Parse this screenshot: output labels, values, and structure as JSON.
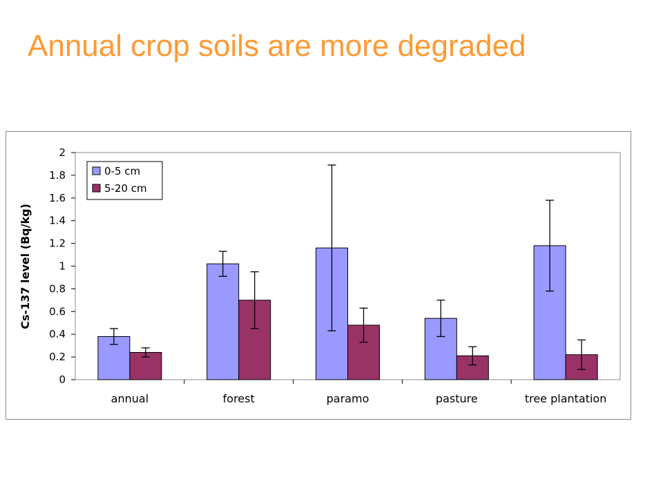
{
  "slide": {
    "title": "Annual crop soils are more degraded"
  },
  "chart_data": {
    "type": "bar",
    "title": "",
    "xlabel": "",
    "ylabel": "Cs-137 level (Bq/kg)",
    "ylim": [
      0,
      2
    ],
    "yticks": [
      "0",
      "0.2",
      "0.4",
      "0.6",
      "0.8",
      "1",
      "1.2",
      "1.4",
      "1.6",
      "1.8",
      "2"
    ],
    "categories": [
      "annual",
      "forest",
      "paramo",
      "pasture",
      "tree plantation"
    ],
    "series": [
      {
        "name": "0-5 cm",
        "color": "#9999ff",
        "values": [
          0.38,
          1.02,
          1.16,
          0.54,
          1.18
        ],
        "error": [
          0.07,
          0.11,
          0.73,
          0.16,
          0.4
        ]
      },
      {
        "name": "5-20 cm",
        "color": "#993366",
        "values": [
          0.24,
          0.7,
          0.48,
          0.21,
          0.22
        ],
        "error": [
          0.04,
          0.25,
          0.15,
          0.08,
          0.13
        ]
      }
    ],
    "legend_position": "top-left",
    "grid": false
  }
}
